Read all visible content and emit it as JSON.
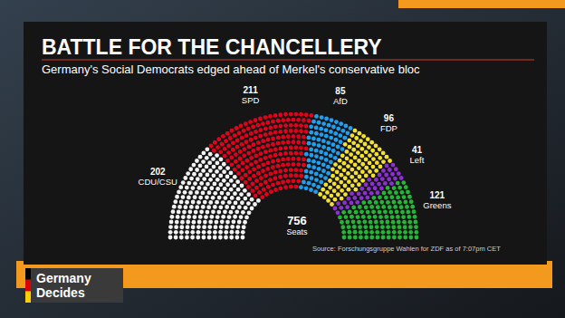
{
  "chart_data": {
    "type": "parliament",
    "title": "BATTLE FOR THE CHANCELLERY",
    "subtitle": "Germany's Social Democrats edged ahead of Merkel's conservative bloc",
    "categories": [
      "CDU/CSU",
      "SPD",
      "AfD",
      "FDP",
      "Left",
      "Greens"
    ],
    "values": [
      202,
      211,
      85,
      96,
      41,
      121
    ],
    "colors": [
      "#f2f2f2",
      "#e3001b",
      "#1d9ff2",
      "#f5e12c",
      "#8e2fd6",
      "#22b735"
    ],
    "data_labels": true,
    "total": {
      "value": 756,
      "label": "Seats"
    },
    "source": "Source: Forschungsgruppe Wahlen for ZDF as of 7:07pm CET"
  },
  "screen": {
    "logo": [
      "Germany",
      "Decides"
    ]
  }
}
